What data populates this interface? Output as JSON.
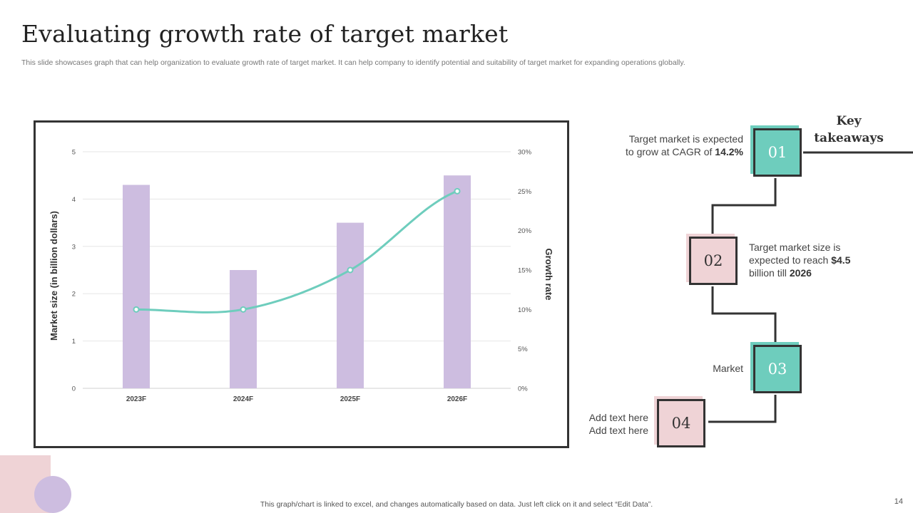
{
  "slide": {
    "title": "Evaluating growth rate of target market",
    "subtitle": "This slide showcases graph that can help organization to evaluate growth rate of target market. It can help company to identify potential and suitability of target market for expanding operations globally.",
    "footer": "This graph/chart is linked to excel,  and changes automatically based on data. Just left click on it and select “Edit Data”.",
    "page_number": "14"
  },
  "chart_data": {
    "type": "bar",
    "categories": [
      "2023F",
      "2024F",
      "2025F",
      "2026F"
    ],
    "series": [
      {
        "name": "Market size (in billion dollars)",
        "type": "bar",
        "axis": "left",
        "values": [
          4.3,
          2.5,
          3.5,
          4.5
        ],
        "color": "#cdbde0"
      },
      {
        "name": "Growth rate",
        "type": "line",
        "axis": "right",
        "values": [
          10,
          10,
          15,
          25
        ],
        "color": "#6ecdbd"
      }
    ],
    "ylabel": "Market size (in billion dollars)",
    "y2label": "Growth rate",
    "ylim": [
      0,
      5
    ],
    "y2lim": [
      0,
      30
    ],
    "yticks": [
      "0",
      "1",
      "2",
      "3",
      "4",
      "5"
    ],
    "y2ticks": [
      "0%",
      "5%",
      "10%",
      "15%",
      "20%",
      "25%",
      "30%"
    ],
    "grid": true
  },
  "takeaways": {
    "title_line1": "Key",
    "title_line2": "takeaways",
    "items": [
      {
        "number": "01",
        "text_a": "Target market is expected to grow at CAGR of ",
        "text_b": "14.2%",
        "text_c": ""
      },
      {
        "number": "02",
        "text_a": "Target market size is expected to reach ",
        "text_b": "$4.5",
        "text_c": " billion till ",
        "text_d": "2026"
      },
      {
        "number": "03",
        "text_a": "Market"
      },
      {
        "number": "04",
        "text_a": "Add text here",
        "text_b": "Add text here"
      }
    ],
    "colors": {
      "green": "#6ecdbd",
      "pink": "#efd3d6"
    }
  }
}
